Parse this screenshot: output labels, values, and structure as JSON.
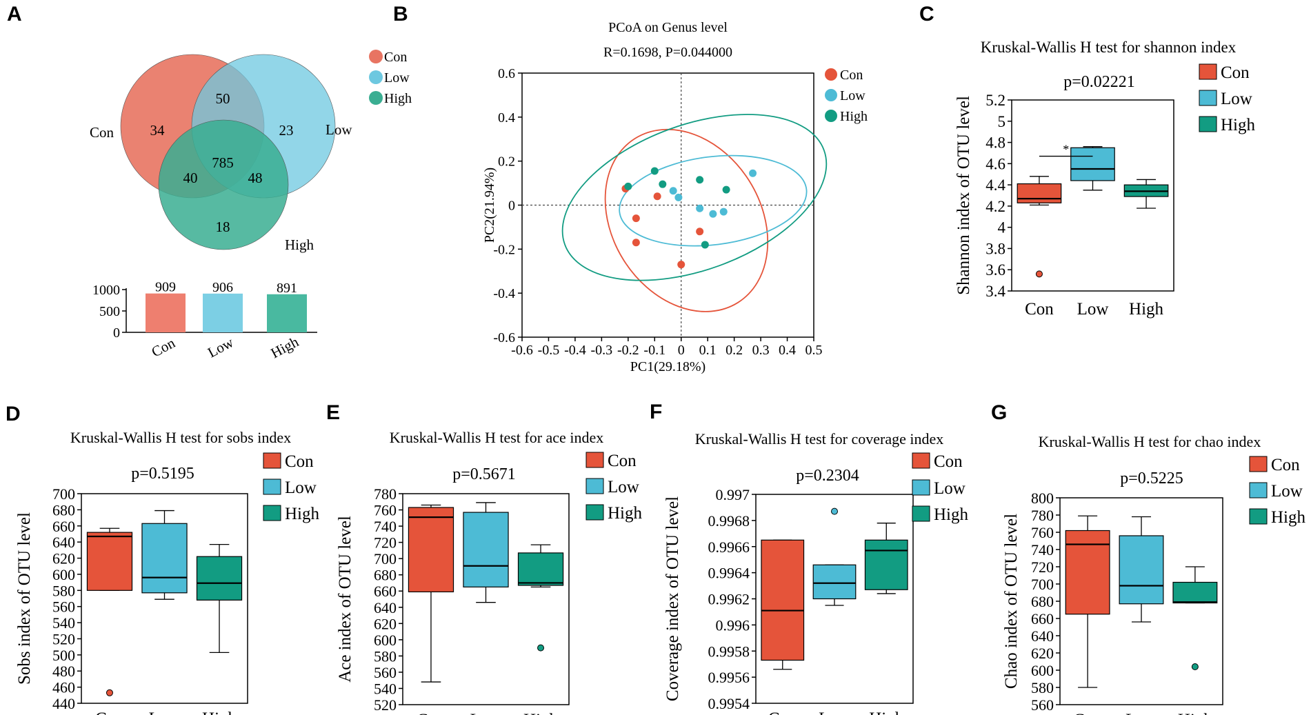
{
  "colors": {
    "con": "#E5543A",
    "low": "#4DBBD5",
    "high": "#129C82",
    "venn_con": "#E87462",
    "venn_low": "#6DC8E0",
    "venn_high": "#3AAE92",
    "bar_con": "#EE7F6F",
    "bar_low": "#7CCFE4",
    "bar_high": "#49B9A0"
  },
  "chart_data": [
    {
      "panel": "A",
      "type": "venn",
      "legend": [
        "Con",
        "Low",
        "High"
      ],
      "set_labels": {
        "con": "Con",
        "low": "Low",
        "high": "High"
      },
      "regions": {
        "con_only": "34",
        "low_only": "23",
        "high_only": "18",
        "con_low": "50",
        "con_high": "40",
        "low_high": "48",
        "all": "785"
      },
      "bars": {
        "type": "bar",
        "categories": [
          "Con",
          "Low",
          "High"
        ],
        "values": [
          909,
          906,
          891
        ],
        "value_labels": [
          "909",
          "906",
          "891"
        ],
        "ylim": [
          0,
          1000
        ],
        "yticks": [
          "0",
          "500",
          "1000"
        ]
      }
    },
    {
      "panel": "B",
      "type": "scatter",
      "title": "PCoA on Genus level",
      "subtitle": "R=0.1698, P=0.044000",
      "xlabel": "PC1(29.18%)",
      "ylabel": "PC2(21.94%)",
      "xlim": [
        -0.6,
        0.5
      ],
      "ylim": [
        -0.6,
        0.6
      ],
      "xticks": [
        "-0.6",
        "-0.5",
        "-0.4",
        "-0.3",
        "-0.2",
        "-0.1",
        "0",
        "0.1",
        "0.2",
        "0.3",
        "0.4",
        "0.5"
      ],
      "yticks": [
        "-0.6",
        "-0.4",
        "-0.2",
        "0",
        "0.2",
        "0.4",
        "0.6"
      ],
      "legend": [
        "Con",
        "Low",
        "High"
      ],
      "series": [
        {
          "name": "Con",
          "points": [
            [
              -0.21,
              0.075
            ],
            [
              -0.09,
              0.04
            ],
            [
              -0.17,
              -0.06
            ],
            [
              -0.17,
              -0.17
            ],
            [
              0,
              -0.27
            ],
            [
              0.07,
              -0.12
            ]
          ]
        },
        {
          "name": "Low",
          "points": [
            [
              -0.03,
              0.065
            ],
            [
              -0.01,
              0.035
            ],
            [
              0.07,
              -0.015
            ],
            [
              0.12,
              -0.04
            ],
            [
              0.16,
              -0.03
            ],
            [
              0.27,
              0.145
            ]
          ]
        },
        {
          "name": "High",
          "points": [
            [
              -0.2,
              0.085
            ],
            [
              -0.1,
              0.155
            ],
            [
              -0.07,
              0.095
            ],
            [
              0.07,
              0.115
            ],
            [
              0.17,
              0.07
            ],
            [
              0.09,
              -0.18
            ]
          ]
        }
      ],
      "ellipses": [
        {
          "name": "Con",
          "cx": 0.02,
          "cy": -0.07,
          "rx": 0.28,
          "ry": 0.44,
          "angle": -32
        },
        {
          "name": "Low",
          "cx": 0.12,
          "cy": 0.02,
          "rx": 0.355,
          "ry": 0.2,
          "angle": -7
        },
        {
          "name": "High",
          "cx": 0.05,
          "cy": 0.035,
          "rx": 0.52,
          "ry": 0.33,
          "angle": -20
        }
      ]
    },
    {
      "panel": "C",
      "type": "box",
      "title": "Kruskal-Wallis H test for shannon index",
      "pvalue": "p=0.02221",
      "ylabel": "Shannon index of OTU level",
      "categories": [
        "Con",
        "Low",
        "High"
      ],
      "ylim": [
        3.4,
        5.2
      ],
      "yticks": [
        "3.4",
        "3.6",
        "3.8",
        "4",
        "4.2",
        "4.4",
        "4.6",
        "4.8",
        "5",
        "5.2"
      ],
      "boxes": [
        {
          "min": 4.21,
          "q1": 4.23,
          "median": 4.27,
          "q3": 4.41,
          "max": 4.48,
          "outliers": [
            3.56
          ]
        },
        {
          "min": 4.35,
          "q1": 4.44,
          "median": 4.55,
          "q3": 4.75,
          "max": 4.76,
          "outliers": []
        },
        {
          "min": 4.18,
          "q1": 4.29,
          "median": 4.34,
          "q3": 4.4,
          "max": 4.45,
          "outliers": []
        }
      ],
      "significance": {
        "from": 0,
        "to": 1,
        "y": 4.67,
        "label": "*"
      },
      "legend": [
        "Con",
        "Low",
        "High"
      ]
    },
    {
      "panel": "D",
      "type": "box",
      "title": "Kruskal-Wallis H test for sobs index",
      "pvalue": "p=0.5195",
      "ylabel": "Sobs index of OTU level",
      "categories": [
        "Con",
        "Low",
        "High"
      ],
      "ylim": [
        440,
        700
      ],
      "yticks": [
        "440",
        "460",
        "480",
        "500",
        "520",
        "540",
        "560",
        "580",
        "600",
        "620",
        "640",
        "660",
        "680",
        "700"
      ],
      "boxes": [
        {
          "min": 580,
          "q1": 580,
          "median": 647,
          "q3": 652,
          "max": 657,
          "outliers": [
            453
          ]
        },
        {
          "min": 569,
          "q1": 577,
          "median": 596,
          "q3": 663,
          "max": 679,
          "outliers": []
        },
        {
          "min": 503,
          "q1": 568,
          "median": 589,
          "q3": 622,
          "max": 637,
          "outliers": []
        }
      ],
      "legend": [
        "Con",
        "Low",
        "High"
      ]
    },
    {
      "panel": "E",
      "type": "box",
      "title": "Kruskal-Wallis H test for ace index",
      "pvalue": "p=0.5671",
      "ylabel": "Ace index of OTU level",
      "categories": [
        "Con",
        "Low",
        "High"
      ],
      "ylim": [
        520,
        780
      ],
      "yticks": [
        "520",
        "540",
        "560",
        "580",
        "600",
        "620",
        "640",
        "660",
        "680",
        "700",
        "720",
        "740",
        "760",
        "780"
      ],
      "boxes": [
        {
          "min": 548,
          "q1": 659,
          "median": 751,
          "q3": 763,
          "max": 766,
          "outliers": []
        },
        {
          "min": 646,
          "q1": 665,
          "median": 691,
          "q3": 757,
          "max": 769,
          "outliers": []
        },
        {
          "min": 665,
          "q1": 667,
          "median": 670,
          "q3": 707,
          "max": 717,
          "outliers": [
            590
          ]
        }
      ],
      "legend": [
        "Con",
        "Low",
        "High"
      ]
    },
    {
      "panel": "F",
      "type": "box",
      "title": "Kruskal-Wallis H test for coverage index",
      "pvalue": "p=0.2304",
      "ylabel": "Coverage index of OTU level",
      "categories": [
        "Con",
        "Low",
        "High"
      ],
      "ylim": [
        0.9954,
        0.997
      ],
      "yticks": [
        "0.9954",
        "0.9956",
        "0.9958",
        "0.996",
        "0.9962",
        "0.9964",
        "0.9966",
        "0.9968",
        "0.997"
      ],
      "boxes": [
        {
          "min": 0.99566,
          "q1": 0.99573,
          "median": 0.99611,
          "q3": 0.99665,
          "max": 0.99665,
          "outliers": []
        },
        {
          "min": 0.99615,
          "q1": 0.9962,
          "median": 0.99632,
          "q3": 0.99646,
          "max": 0.99646,
          "outliers": [
            0.99687
          ]
        },
        {
          "min": 0.99624,
          "q1": 0.99627,
          "median": 0.99657,
          "q3": 0.99665,
          "max": 0.99678,
          "outliers": []
        }
      ],
      "legend": [
        "Con",
        "Low",
        "High"
      ]
    },
    {
      "panel": "G",
      "type": "box",
      "title": "Kruskal-Wallis H test for chao index",
      "pvalue": "p=0.5225",
      "ylabel": "Chao index of OTU level",
      "categories": [
        "Con",
        "Low",
        "High"
      ],
      "ylim": [
        560,
        800
      ],
      "yticks": [
        "560",
        "580",
        "600",
        "620",
        "640",
        "660",
        "680",
        "700",
        "720",
        "740",
        "760",
        "780",
        "800"
      ],
      "boxes": [
        {
          "min": 580,
          "q1": 665,
          "median": 746,
          "q3": 762,
          "max": 779,
          "outliers": []
        },
        {
          "min": 656,
          "q1": 677,
          "median": 698,
          "q3": 756,
          "max": 778,
          "outliers": []
        },
        {
          "min": 678,
          "q1": 678,
          "median": 679,
          "q3": 702,
          "max": 720,
          "outliers": [
            604
          ]
        }
      ],
      "legend": [
        "Con",
        "Low",
        "High"
      ]
    }
  ]
}
